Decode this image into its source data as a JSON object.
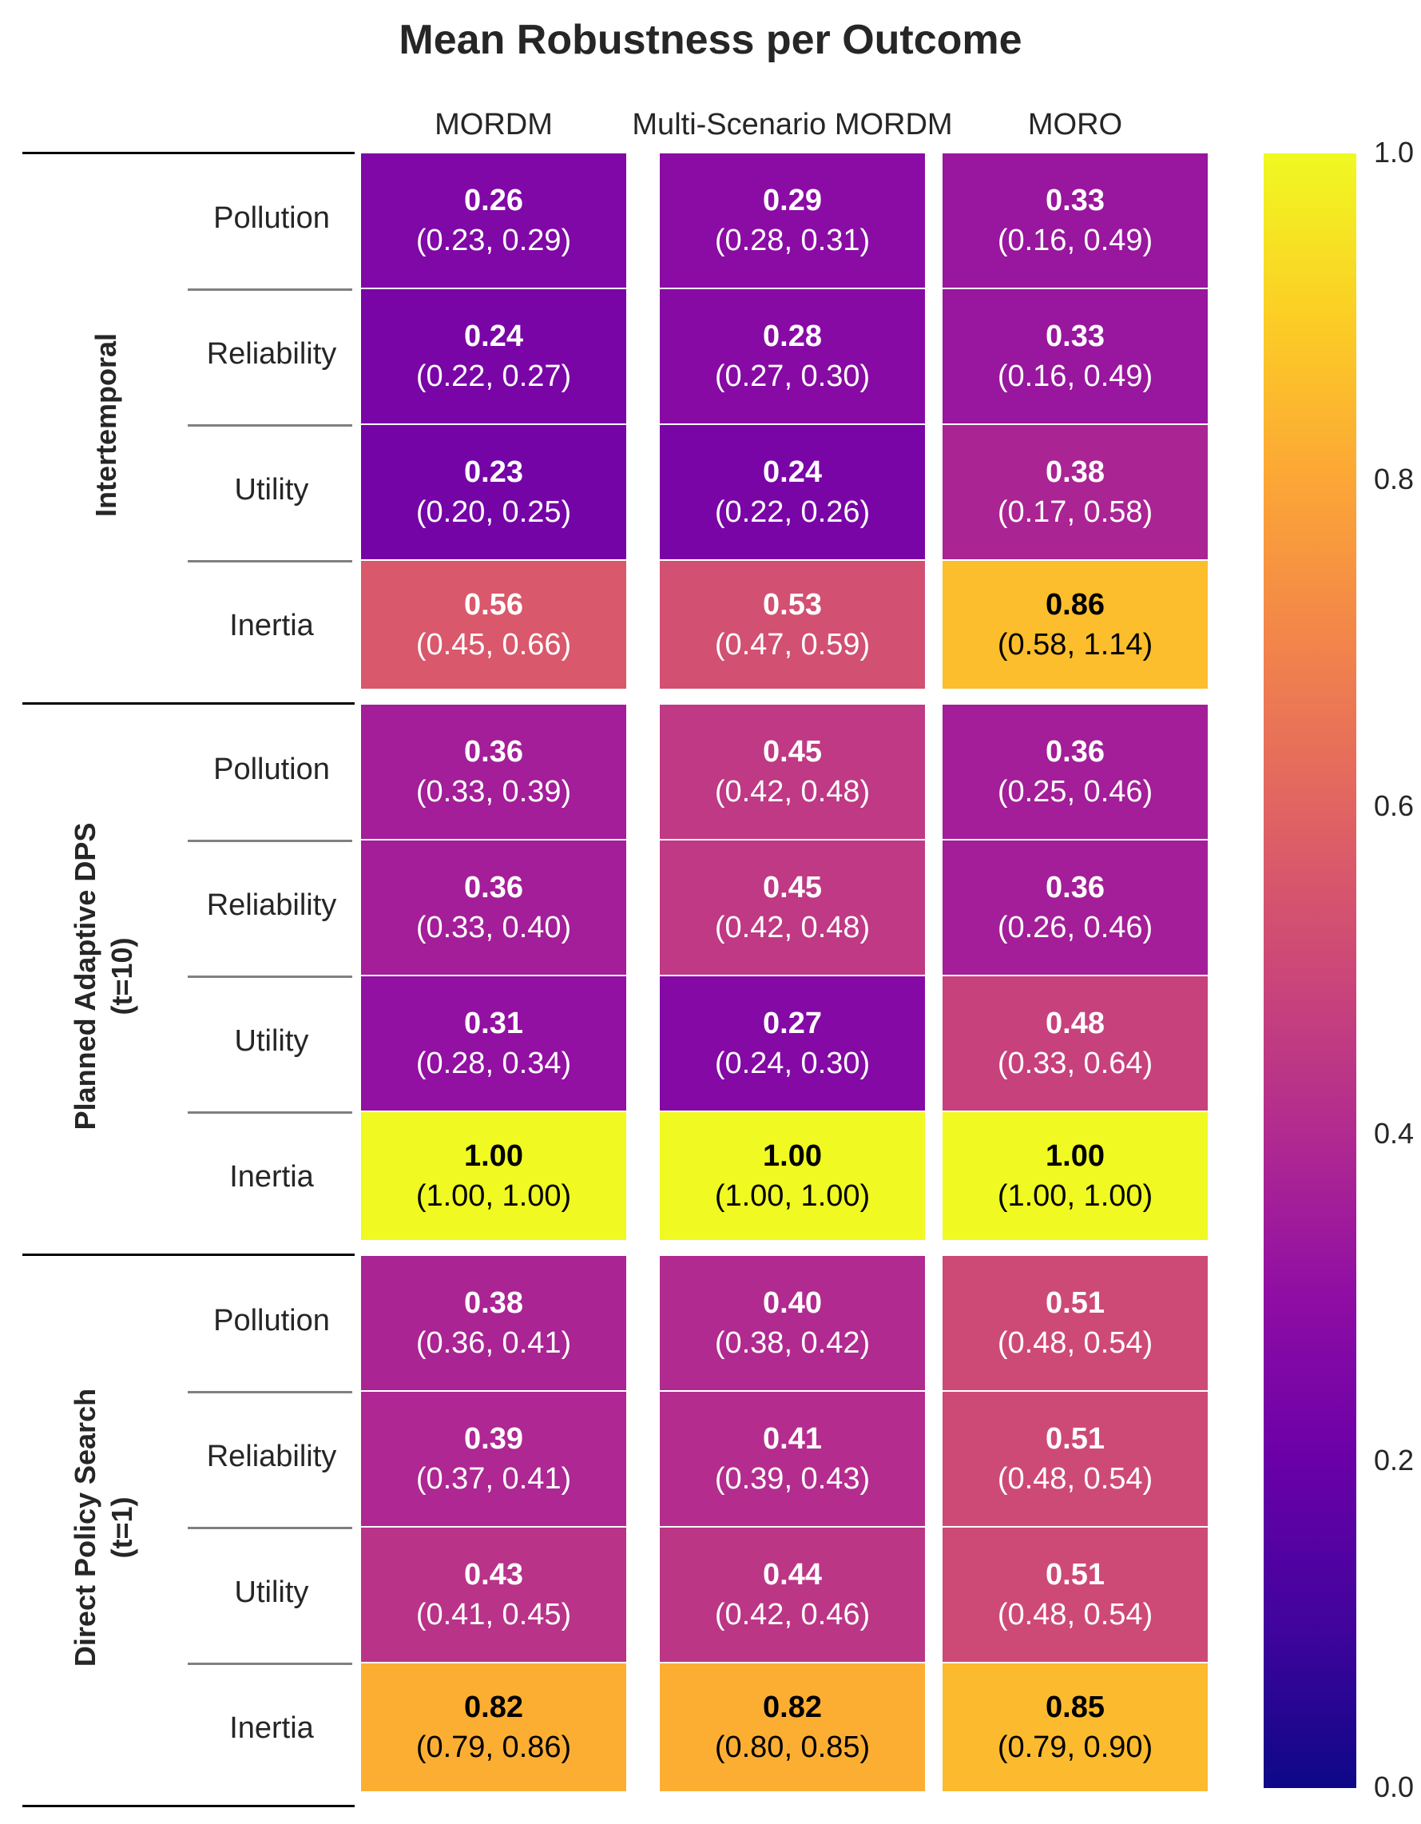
{
  "chart_data": {
    "type": "heatmap",
    "title": "Mean Robustness per Outcome",
    "columns": [
      "MORDM",
      "Multi-Scenario MORDM",
      "MORO"
    ],
    "groups": [
      {
        "label_lines": [
          "Intertemporal"
        ],
        "rows": [
          {
            "label": "Pollution",
            "cells": [
              {
                "value": 0.26,
                "text": "0.26",
                "ci": "(0.23, 0.29)"
              },
              {
                "value": 0.29,
                "text": "0.29",
                "ci": "(0.28, 0.31)"
              },
              {
                "value": 0.33,
                "text": "0.33",
                "ci": "(0.16, 0.49)"
              }
            ]
          },
          {
            "label": "Reliability",
            "cells": [
              {
                "value": 0.24,
                "text": "0.24",
                "ci": "(0.22, 0.27)"
              },
              {
                "value": 0.28,
                "text": "0.28",
                "ci": "(0.27, 0.30)"
              },
              {
                "value": 0.33,
                "text": "0.33",
                "ci": "(0.16, 0.49)"
              }
            ]
          },
          {
            "label": "Utility",
            "cells": [
              {
                "value": 0.23,
                "text": "0.23",
                "ci": "(0.20, 0.25)"
              },
              {
                "value": 0.24,
                "text": "0.24",
                "ci": "(0.22, 0.26)"
              },
              {
                "value": 0.38,
                "text": "0.38",
                "ci": "(0.17, 0.58)"
              }
            ]
          },
          {
            "label": "Inertia",
            "cells": [
              {
                "value": 0.56,
                "text": "0.56",
                "ci": "(0.45, 0.66)"
              },
              {
                "value": 0.53,
                "text": "0.53",
                "ci": "(0.47, 0.59)"
              },
              {
                "value": 0.86,
                "text": "0.86",
                "ci": "(0.58, 1.14)"
              }
            ]
          }
        ]
      },
      {
        "label_lines": [
          "Planned Adaptive DPS",
          "(t=10)"
        ],
        "rows": [
          {
            "label": "Pollution",
            "cells": [
              {
                "value": 0.36,
                "text": "0.36",
                "ci": "(0.33, 0.39)"
              },
              {
                "value": 0.45,
                "text": "0.45",
                "ci": "(0.42, 0.48)"
              },
              {
                "value": 0.36,
                "text": "0.36",
                "ci": "(0.25, 0.46)"
              }
            ]
          },
          {
            "label": "Reliability",
            "cells": [
              {
                "value": 0.36,
                "text": "0.36",
                "ci": "(0.33, 0.40)"
              },
              {
                "value": 0.45,
                "text": "0.45",
                "ci": "(0.42, 0.48)"
              },
              {
                "value": 0.36,
                "text": "0.36",
                "ci": "(0.26, 0.46)"
              }
            ]
          },
          {
            "label": "Utility",
            "cells": [
              {
                "value": 0.31,
                "text": "0.31",
                "ci": "(0.28, 0.34)"
              },
              {
                "value": 0.27,
                "text": "0.27",
                "ci": "(0.24, 0.30)"
              },
              {
                "value": 0.48,
                "text": "0.48",
                "ci": "(0.33, 0.64)"
              }
            ]
          },
          {
            "label": "Inertia",
            "cells": [
              {
                "value": 1.0,
                "text": "1.00",
                "ci": "(1.00, 1.00)"
              },
              {
                "value": 1.0,
                "text": "1.00",
                "ci": "(1.00, 1.00)"
              },
              {
                "value": 1.0,
                "text": "1.00",
                "ci": "(1.00, 1.00)"
              }
            ]
          }
        ]
      },
      {
        "label_lines": [
          "Direct Policy Search",
          "(t=1)"
        ],
        "rows": [
          {
            "label": "Pollution",
            "cells": [
              {
                "value": 0.38,
                "text": "0.38",
                "ci": "(0.36, 0.41)"
              },
              {
                "value": 0.4,
                "text": "0.40",
                "ci": "(0.38, 0.42)"
              },
              {
                "value": 0.51,
                "text": "0.51",
                "ci": "(0.48, 0.54)"
              }
            ]
          },
          {
            "label": "Reliability",
            "cells": [
              {
                "value": 0.39,
                "text": "0.39",
                "ci": "(0.37, 0.41)"
              },
              {
                "value": 0.41,
                "text": "0.41",
                "ci": "(0.39, 0.43)"
              },
              {
                "value": 0.51,
                "text": "0.51",
                "ci": "(0.48, 0.54)"
              }
            ]
          },
          {
            "label": "Utility",
            "cells": [
              {
                "value": 0.43,
                "text": "0.43",
                "ci": "(0.41, 0.45)"
              },
              {
                "value": 0.44,
                "text": "0.44",
                "ci": "(0.42, 0.46)"
              },
              {
                "value": 0.51,
                "text": "0.51",
                "ci": "(0.48, 0.54)"
              }
            ]
          },
          {
            "label": "Inertia",
            "cells": [
              {
                "value": 0.82,
                "text": "0.82",
                "ci": "(0.79, 0.86)"
              },
              {
                "value": 0.82,
                "text": "0.82",
                "ci": "(0.80, 0.85)"
              },
              {
                "value": 0.85,
                "text": "0.85",
                "ci": "(0.79, 0.90)"
              }
            ]
          }
        ]
      }
    ],
    "colorbar": {
      "colormap": "plasma",
      "range": [
        0.0,
        1.0
      ],
      "ticks": [
        "0.0",
        "0.2",
        "0.4",
        "0.6",
        "0.8",
        "1.0"
      ]
    },
    "text_colors": {
      "dark_cells": "#ffffff",
      "light_cells": "#000000"
    },
    "grid": false
  }
}
